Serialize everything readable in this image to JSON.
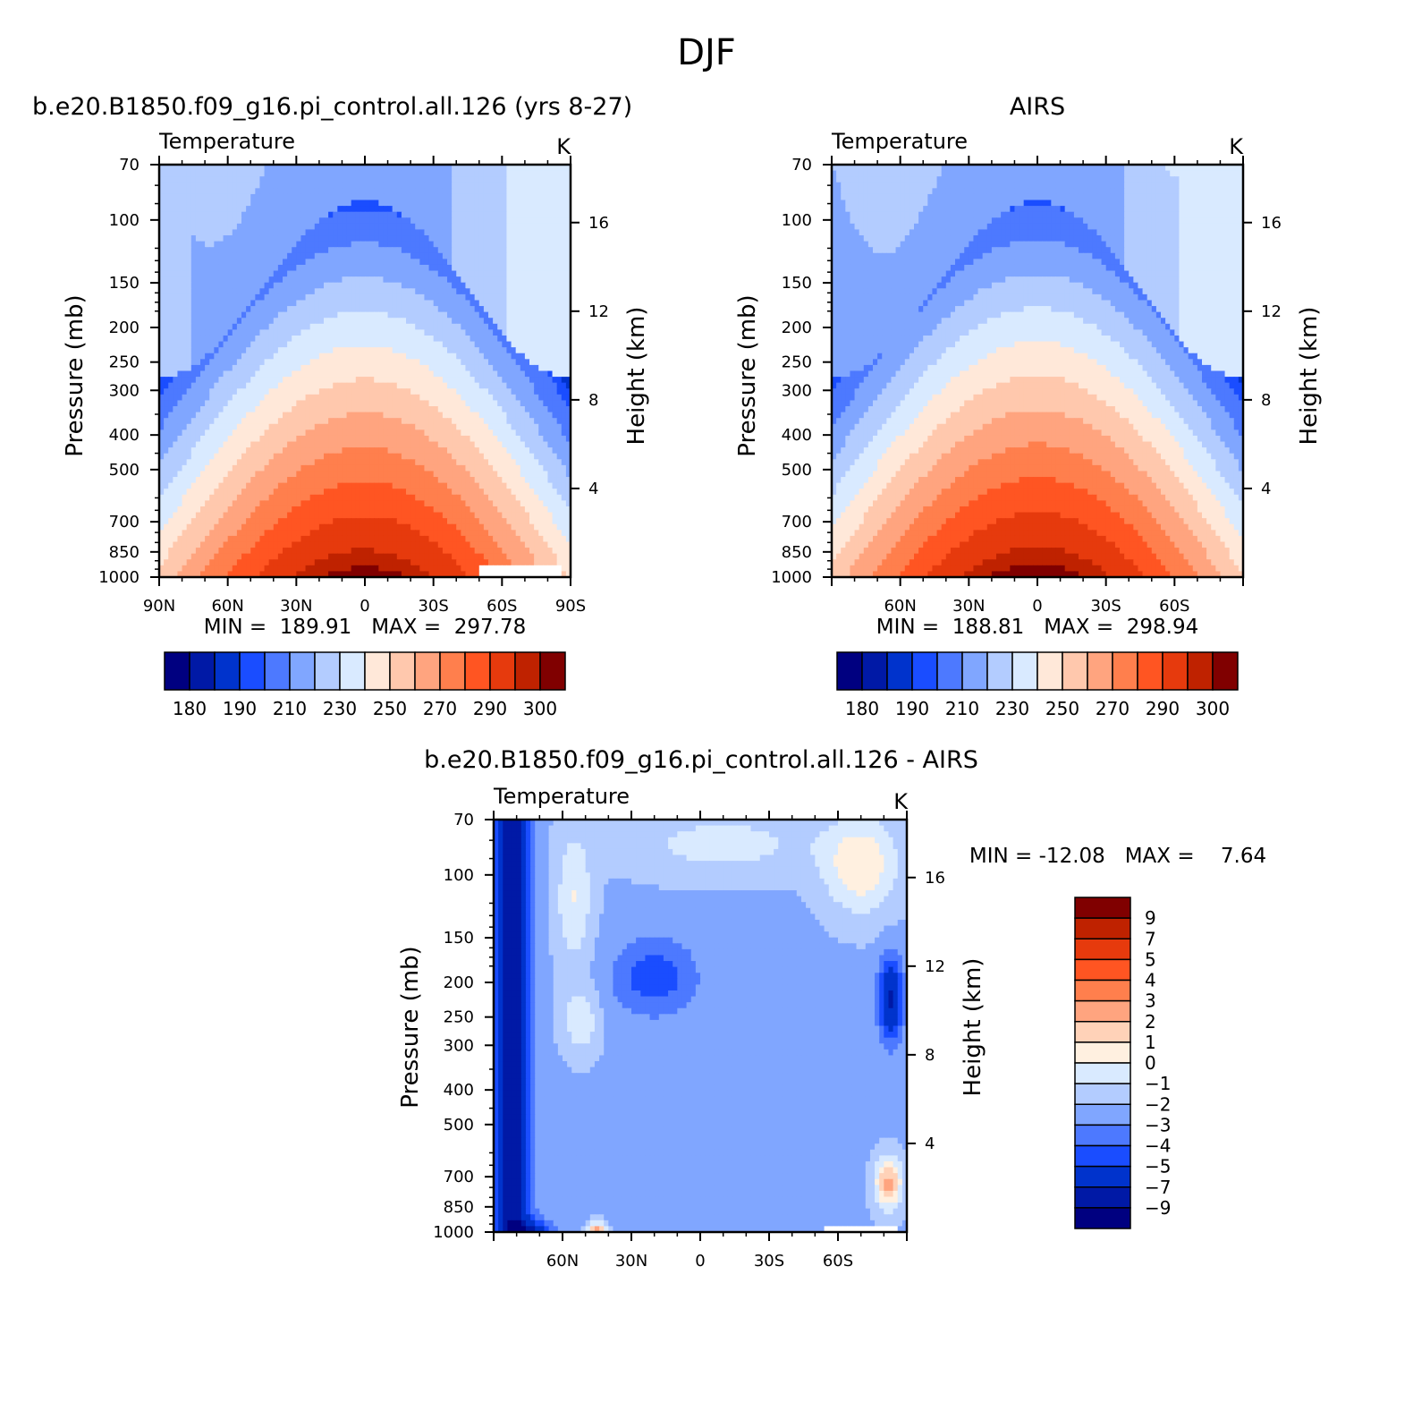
{
  "figure_title": "DJF",
  "colors": {
    "abs_palette": [
      "#000080",
      "#0019a6",
      "#0033cc",
      "#1a4dff",
      "#4d79ff",
      "#80a6ff",
      "#b3ccff",
      "#d9eaff",
      "#ffe8d9",
      "#ffc8ad",
      "#ffa47f",
      "#ff7f4d",
      "#ff5522",
      "#e63a0d",
      "#bf2200",
      "#800000"
    ],
    "diff_palette": [
      "#000080",
      "#0019a6",
      "#0033cc",
      "#1a4dff",
      "#4d79ff",
      "#80a6ff",
      "#b3ccff",
      "#d9eaff",
      "#fff0e0",
      "#ffd2b8",
      "#ffa47f",
      "#ff7f4d",
      "#ff5522",
      "#e63a0d",
      "#bf2200",
      "#800000"
    ],
    "missing": "#ffffff"
  },
  "chart_data": [
    {
      "id": "model",
      "type": "heatmap",
      "title": "b.e20.B1850.f09_g16.pi_control.all.126 (yrs 8-27)",
      "left_label": "Temperature",
      "right_label": "K",
      "ylabel": "Pressure (mb)",
      "y2label": "Height (km)",
      "x_ticks": [
        "90N",
        "60N",
        "30N",
        "0",
        "30S",
        "60S",
        "90S"
      ],
      "x_tick_values": [
        90,
        60,
        30,
        0,
        -30,
        -60,
        -90
      ],
      "xlim": [
        90,
        -90
      ],
      "y_ticks": [
        "70",
        "100",
        "150",
        "200",
        "250",
        "300",
        "400",
        "500",
        "700",
        "850",
        "1000"
      ],
      "y_tick_values": [
        70,
        100,
        150,
        200,
        250,
        300,
        400,
        500,
        700,
        850,
        1000
      ],
      "ylim": [
        70,
        1000
      ],
      "y2_ticks": [
        "16",
        "12",
        "8",
        "4"
      ],
      "y2_tick_values": [
        16,
        12,
        8,
        4
      ],
      "stats": "MIN =  189.91   MAX =  297.78",
      "field": {
        "kind": "abs",
        "tsurf": 298,
        "tilt": 0,
        "asym": 0.5,
        "coldfrac": 0.22
      },
      "missing_region": {
        "lat": [
          -50,
          -85
        ],
        "p": [
          930,
          1000
        ]
      }
    },
    {
      "id": "obs",
      "type": "heatmap",
      "title": "AIRS",
      "left_label": "Temperature",
      "right_label": "K",
      "ylabel": "Pressure (mb)",
      "y2label": "Height (km)",
      "x_ticks": [
        "60N",
        "30N",
        "0",
        "30S",
        "60S"
      ],
      "x_tick_values": [
        60,
        30,
        0,
        -30,
        -60
      ],
      "xlim": [
        90,
        -90
      ],
      "y_ticks": [
        "70",
        "100",
        "150",
        "200",
        "250",
        "300",
        "400",
        "500",
        "700",
        "850",
        "1000"
      ],
      "y_tick_values": [
        70,
        100,
        150,
        200,
        250,
        300,
        400,
        500,
        700,
        850,
        1000
      ],
      "ylim": [
        70,
        1000
      ],
      "y2_ticks": [
        "16",
        "12",
        "8",
        "4"
      ],
      "y2_tick_values": [
        16,
        12,
        8,
        4
      ],
      "stats": "MIN =  188.81   MAX =  298.94",
      "field": {
        "kind": "abs",
        "tsurf": 299,
        "tilt": 0,
        "asym": 0.4,
        "coldfrac": 0.3
      }
    },
    {
      "id": "diff",
      "type": "heatmap",
      "title": "b.e20.B1850.f09_g16.pi_control.all.126 - AIRS",
      "left_label": "Temperature",
      "right_label": "K",
      "ylabel": "Pressure (mb)",
      "y2label": "Height (km)",
      "x_ticks": [
        "60N",
        "30N",
        "0",
        "30S",
        "60S"
      ],
      "x_tick_values": [
        60,
        30,
        0,
        -30,
        -60
      ],
      "xlim": [
        90,
        -90
      ],
      "y_ticks": [
        "70",
        "100",
        "150",
        "200",
        "250",
        "300",
        "400",
        "500",
        "700",
        "850",
        "1000"
      ],
      "y_tick_values": [
        70,
        100,
        150,
        200,
        250,
        300,
        400,
        500,
        700,
        850,
        1000
      ],
      "ylim": [
        70,
        1000
      ],
      "y2_ticks": [
        "16",
        "12",
        "8",
        "4"
      ],
      "y2_tick_values": [
        16,
        12,
        8,
        4
      ],
      "stats": "MIN = -12.08   MAX =    7.64",
      "field": {
        "kind": "diff"
      },
      "missing_region": {
        "lat": [
          -55,
          -85
        ],
        "p": [
          960,
          1000
        ]
      }
    }
  ],
  "colorbars": {
    "abs": {
      "orientation": "horizontal",
      "levels": [
        175,
        180,
        185,
        190,
        200,
        210,
        220,
        230,
        240,
        250,
        260,
        270,
        280,
        290,
        295,
        300
      ],
      "labels": [
        "180",
        "190",
        "210",
        "230",
        "250",
        "270",
        "290",
        "300"
      ]
    },
    "diff": {
      "orientation": "vertical",
      "levels": [
        -9,
        -7,
        -5,
        -4,
        -3,
        -2,
        -1,
        0,
        1,
        2,
        3,
        4,
        5,
        7,
        9
      ],
      "labels": [
        "9",
        "7",
        "5",
        "4",
        "3",
        "2",
        "1",
        "0",
        "−1",
        "−2",
        "−3",
        "−4",
        "−5",
        "−7",
        "−9"
      ]
    }
  }
}
